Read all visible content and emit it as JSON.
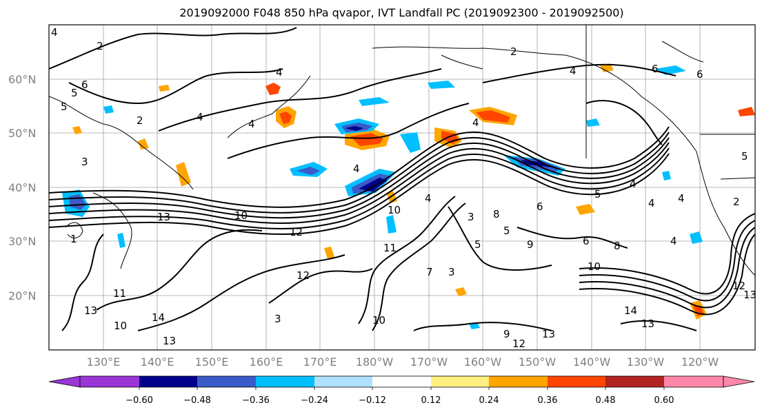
{
  "title": "2019092000 F048 850 hPa qvapor, IVT Landfall PC (2019092300 - 2019092500)",
  "lat_labels": [
    "60°N",
    "50°N",
    "40°N",
    "30°N",
    "20°N"
  ],
  "lon_labels": [
    "130°E",
    "140°E",
    "150°E",
    "160°E",
    "170°E",
    "180°W",
    "170°W",
    "160°W",
    "150°W",
    "140°W",
    "130°W",
    "120°W"
  ],
  "colorbar": {
    "colors": [
      "#9a36d6",
      "#00008b",
      "#3a5bc8",
      "#00bfff",
      "#b0e0ff",
      "#ffffff",
      "#ffee80",
      "#ffa500",
      "#ff4500",
      "#b22222",
      "#ff88aa"
    ],
    "tick_labels": [
      "−0.60",
      "−0.48",
      "−0.36",
      "−0.24",
      "−0.12",
      "0.12",
      "0.24",
      "0.36",
      "0.48",
      "0.60"
    ]
  },
  "contour_labels": [
    "4",
    "2",
    "6",
    "5",
    "5",
    "2",
    "4",
    "4",
    "4",
    "2",
    "6",
    "6",
    "4",
    "4",
    "4",
    "3",
    "4",
    "4",
    "4",
    "4",
    "5",
    "2",
    "5",
    "13",
    "10",
    "10",
    "6",
    "5",
    "8",
    "3",
    "9",
    "5",
    "6",
    "8",
    "4",
    "1",
    "11",
    "12",
    "11",
    "10",
    "12",
    "3",
    "10",
    "7",
    "10",
    "14",
    "13",
    "13",
    "12",
    "13",
    "9",
    "13",
    "14",
    "13",
    "12",
    "3"
  ]
}
